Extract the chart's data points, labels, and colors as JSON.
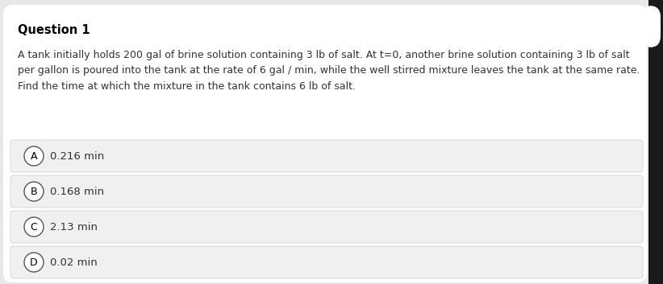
{
  "title": "Question 1",
  "question_text": "A tank initially holds 200 gal of brine solution containing 3 lb of salt. At t=0, another brine solution containing 3 lb of salt\nper gallon is poured into the tank at the rate of 6 gal / min, while the well stirred mixture leaves the tank at the same rate.\nFind the time at which the mixture in the tank contains 6 lb of salt.",
  "options": [
    {
      "label": "A",
      "text": "0.216 min"
    },
    {
      "label": "B",
      "text": "0.168 min"
    },
    {
      "label": "C",
      "text": "2.13 min"
    },
    {
      "label": "D",
      "text": "0.02 min"
    }
  ],
  "bg_color": "#e8e8e8",
  "card_color": "#ffffff",
  "option_bg_color": "#f0f0f0",
  "option_border_color": "#cccccc",
  "title_color": "#000000",
  "text_color": "#333333",
  "circle_edge_color": "#555555",
  "circle_fill_color": "#ffffff",
  "label_color": "#000000",
  "sidebar_color": "#1a1a1a",
  "title_fontsize": 10.5,
  "question_fontsize": 9.0,
  "option_fontsize": 9.5,
  "label_fontsize": 9.0
}
